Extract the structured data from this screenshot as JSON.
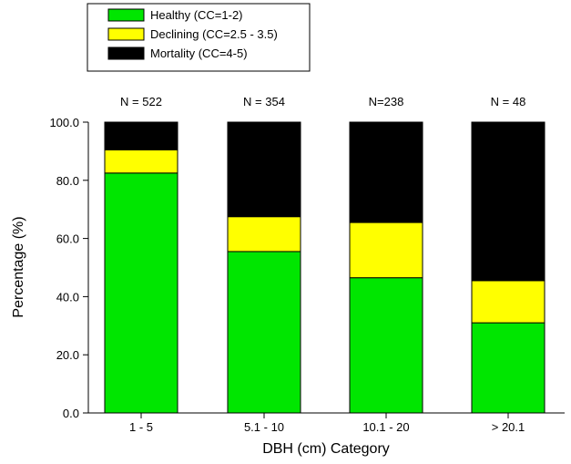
{
  "chart_data": {
    "type": "bar",
    "stacked": true,
    "title": "",
    "xlabel": "DBH (cm) Category",
    "ylabel": "Percentage (%)",
    "ylim": [
      0,
      100
    ],
    "yticks": [
      "0.0",
      "20.0",
      "40.0",
      "60.0",
      "80.0",
      "100.0"
    ],
    "grid": false,
    "legend_position": "top-left",
    "categories": [
      "1 - 5",
      "5.1 - 10",
      "10.1 - 20",
      "> 20.1"
    ],
    "sample_labels": [
      "N = 522",
      "N = 354",
      "N=238",
      "N = 48"
    ],
    "series": [
      {
        "name": "Healthy (CC=1-2)",
        "color": "#00e600",
        "values": [
          82.5,
          55.5,
          46.5,
          31.0
        ]
      },
      {
        "name": "Declining (CC=2.5 - 3.5)",
        "color": "#ffff00",
        "values": [
          8.0,
          12.0,
          19.0,
          14.5
        ]
      },
      {
        "name": "Mortality (CC=4-5)",
        "color": "#000000",
        "values": [
          9.5,
          32.5,
          34.5,
          54.5
        ]
      }
    ]
  }
}
